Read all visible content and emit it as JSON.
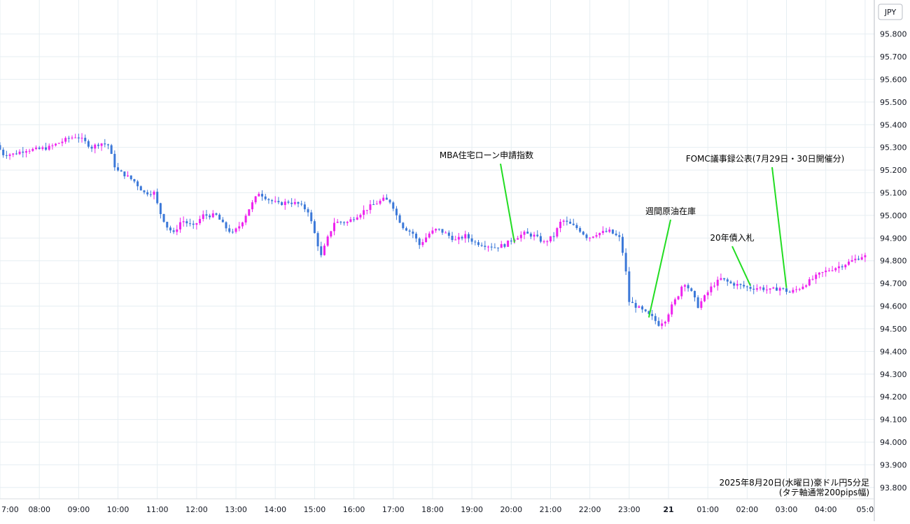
{
  "chart_data": {
    "type": "candlestick",
    "currency_label": "JPY",
    "caption_line1": "2025年8月20日(水曜日)豪ドル円5分足",
    "caption_line2": "(タテ軸通常200pips幅)",
    "ylim": [
      93.75,
      95.95
    ],
    "y_ticks": [
      "93.800",
      "93.900",
      "94.000",
      "94.100",
      "94.200",
      "94.300",
      "94.400",
      "94.500",
      "94.600",
      "94.700",
      "94.800",
      "94.900",
      "95.000",
      "95.100",
      "95.200",
      "95.300",
      "95.400",
      "95.500",
      "95.600",
      "95.700",
      "95.800"
    ],
    "x_ticks": [
      {
        "label": "7:00",
        "t": 0
      },
      {
        "label": "08:00",
        "t": 60
      },
      {
        "label": "09:00",
        "t": 120
      },
      {
        "label": "10:00",
        "t": 180
      },
      {
        "label": "11:00",
        "t": 240
      },
      {
        "label": "12:00",
        "t": 300
      },
      {
        "label": "13:00",
        "t": 360
      },
      {
        "label": "14:00",
        "t": 420
      },
      {
        "label": "15:00",
        "t": 480
      },
      {
        "label": "16:00",
        "t": 540
      },
      {
        "label": "17:00",
        "t": 600
      },
      {
        "label": "18:00",
        "t": 660
      },
      {
        "label": "19:00",
        "t": 720
      },
      {
        "label": "20:00",
        "t": 780
      },
      {
        "label": "21:00",
        "t": 840
      },
      {
        "label": "22:00",
        "t": 900
      },
      {
        "label": "23:00",
        "t": 960
      },
      {
        "label": "21",
        "t": 1020,
        "bold": true
      },
      {
        "label": "01:00",
        "t": 1080
      },
      {
        "label": "02:00",
        "t": 1140
      },
      {
        "label": "03:00",
        "t": 1200
      },
      {
        "label": "04:00",
        "t": 1260
      },
      {
        "label": "05:0",
        "t": 1320
      }
    ],
    "colors": {
      "up": "#ee22ee",
      "down": "#3b78d8",
      "annotation_line": "#22dd22",
      "grid": "#e6eef2"
    },
    "annotations": [
      {
        "text": "MBA住宅ローン申請指数",
        "t": 785,
        "price": 94.88
      },
      {
        "text": "週間原油在庫",
        "t": 990,
        "price": 94.55
      },
      {
        "text": "20年債入札",
        "t": 1145,
        "price": 94.69
      },
      {
        "text": "FOMC議事録公表(7月29日・30日開催分)",
        "t": 1200,
        "price": 94.68
      }
    ],
    "anchors": [
      [
        0,
        95.31
      ],
      [
        10,
        95.27
      ],
      [
        25,
        95.27
      ],
      [
        45,
        95.29
      ],
      [
        60,
        95.29
      ],
      [
        80,
        95.3
      ],
      [
        95,
        95.32
      ],
      [
        110,
        95.34
      ],
      [
        122,
        95.35
      ],
      [
        132,
        95.33
      ],
      [
        145,
        95.3
      ],
      [
        158,
        95.32
      ],
      [
        170,
        95.31
      ],
      [
        182,
        95.2
      ],
      [
        195,
        95.18
      ],
      [
        210,
        95.15
      ],
      [
        225,
        95.1
      ],
      [
        240,
        95.1
      ],
      [
        248,
        95.02
      ],
      [
        260,
        94.95
      ],
      [
        270,
        94.92
      ],
      [
        282,
        94.98
      ],
      [
        300,
        94.95
      ],
      [
        315,
        95.0
      ],
      [
        335,
        95.0
      ],
      [
        348,
        94.95
      ],
      [
        360,
        94.92
      ],
      [
        372,
        94.96
      ],
      [
        385,
        95.03
      ],
      [
        400,
        95.1
      ],
      [
        415,
        95.07
      ],
      [
        430,
        95.05
      ],
      [
        445,
        95.06
      ],
      [
        460,
        95.05
      ],
      [
        475,
        95.02
      ],
      [
        482,
        94.95
      ],
      [
        495,
        94.82
      ],
      [
        505,
        94.9
      ],
      [
        515,
        94.97
      ],
      [
        535,
        94.97
      ],
      [
        550,
        95.0
      ],
      [
        570,
        95.04
      ],
      [
        590,
        95.07
      ],
      [
        602,
        95.06
      ],
      [
        610,
        95.0
      ],
      [
        620,
        94.95
      ],
      [
        635,
        94.92
      ],
      [
        645,
        94.87
      ],
      [
        660,
        94.92
      ],
      [
        672,
        94.94
      ],
      [
        685,
        94.92
      ],
      [
        700,
        94.89
      ],
      [
        715,
        94.91
      ],
      [
        730,
        94.88
      ],
      [
        745,
        94.87
      ],
      [
        760,
        94.86
      ],
      [
        775,
        94.87
      ],
      [
        790,
        94.9
      ],
      [
        805,
        94.92
      ],
      [
        820,
        94.91
      ],
      [
        835,
        94.88
      ],
      [
        850,
        94.91
      ],
      [
        862,
        94.98
      ],
      [
        875,
        94.96
      ],
      [
        888,
        94.94
      ],
      [
        902,
        94.9
      ],
      [
        915,
        94.92
      ],
      [
        935,
        94.93
      ],
      [
        950,
        94.9
      ],
      [
        958,
        94.8
      ],
      [
        965,
        94.62
      ],
      [
        975,
        94.6
      ],
      [
        990,
        94.57
      ],
      [
        1000,
        94.55
      ],
      [
        1010,
        94.52
      ],
      [
        1020,
        94.54
      ],
      [
        1030,
        94.6
      ],
      [
        1040,
        94.65
      ],
      [
        1048,
        94.71
      ],
      [
        1060,
        94.66
      ],
      [
        1070,
        94.6
      ],
      [
        1080,
        94.64
      ],
      [
        1092,
        94.69
      ],
      [
        1105,
        94.72
      ],
      [
        1120,
        94.7
      ],
      [
        1135,
        94.69
      ],
      [
        1150,
        94.68
      ],
      [
        1165,
        94.68
      ],
      [
        1180,
        94.67
      ],
      [
        1195,
        94.68
      ],
      [
        1210,
        94.66
      ],
      [
        1225,
        94.68
      ],
      [
        1240,
        94.71
      ],
      [
        1255,
        94.74
      ],
      [
        1270,
        94.76
      ],
      [
        1290,
        94.78
      ],
      [
        1305,
        94.8
      ],
      [
        1320,
        94.82
      ]
    ],
    "xlabel": "",
    "ylabel": ""
  }
}
